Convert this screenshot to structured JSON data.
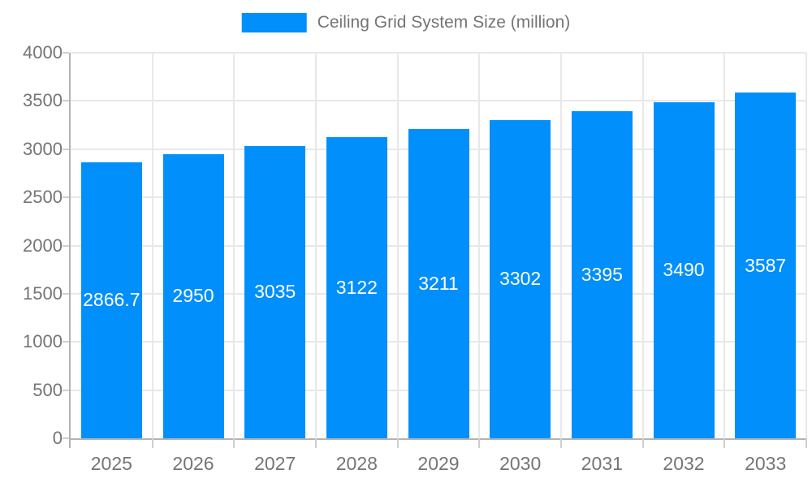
{
  "chart_data": {
    "type": "bar",
    "title": "Ceiling Grid System Size (million)",
    "categories": [
      "2025",
      "2026",
      "2027",
      "2028",
      "2029",
      "2030",
      "2031",
      "2032",
      "2033"
    ],
    "values": [
      2866.7,
      2950,
      3035,
      3122,
      3211,
      3302,
      3395,
      3490,
      3587
    ],
    "value_labels": [
      "2866.7",
      "2950",
      "3035",
      "3122",
      "3211",
      "3302",
      "3395",
      "3490",
      "3587"
    ],
    "xlabel": "",
    "ylabel": "",
    "ylim": [
      0,
      4000
    ],
    "yticks": [
      0,
      500,
      1000,
      1500,
      2000,
      2500,
      3000,
      3500,
      4000
    ],
    "grid": "horizontal-and-vertical",
    "legend_position": "top-center",
    "bar_labels_position": "center-inside",
    "colors": {
      "bar": "#008FFB",
      "bar_label_text": "#ffffff",
      "axis_text": "#757575",
      "legend_text": "#757575",
      "grid_line": "#e8e8e8",
      "axis_line": "#b3b3b3",
      "tick_line": "#cfcfcf",
      "background": "#ffffff"
    }
  }
}
